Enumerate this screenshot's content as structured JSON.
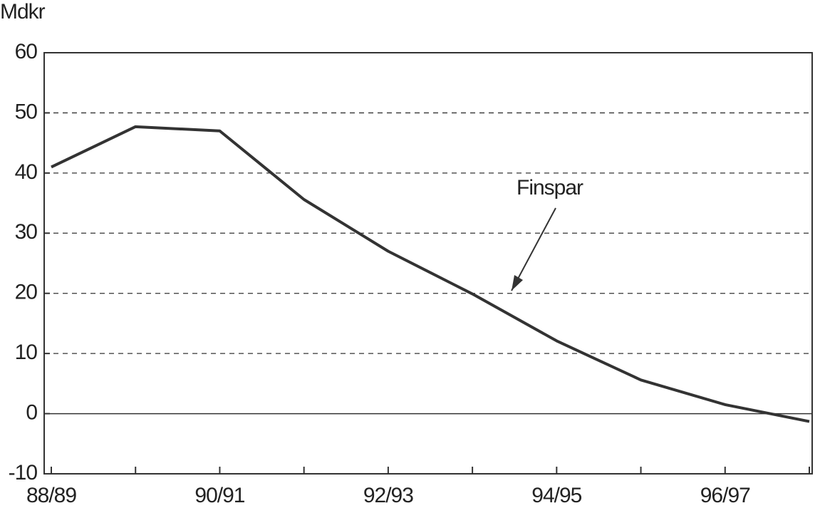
{
  "chart_data": {
    "type": "line",
    "y_label": "Mdkr",
    "categories": [
      "88/89",
      null,
      "90/91",
      null,
      "92/93",
      null,
      "94/95",
      null,
      "96/97",
      null
    ],
    "series": [
      {
        "name": "Finspar",
        "color": "#333333",
        "values": [
          41,
          47.7,
          47,
          35.6,
          27,
          19.9,
          12.1,
          5.6,
          1.5,
          -1.3
        ]
      }
    ],
    "ylim": [
      -10,
      60
    ],
    "yticks": [
      -10,
      0,
      10,
      20,
      30,
      40,
      50,
      60
    ],
    "grid": true
  }
}
